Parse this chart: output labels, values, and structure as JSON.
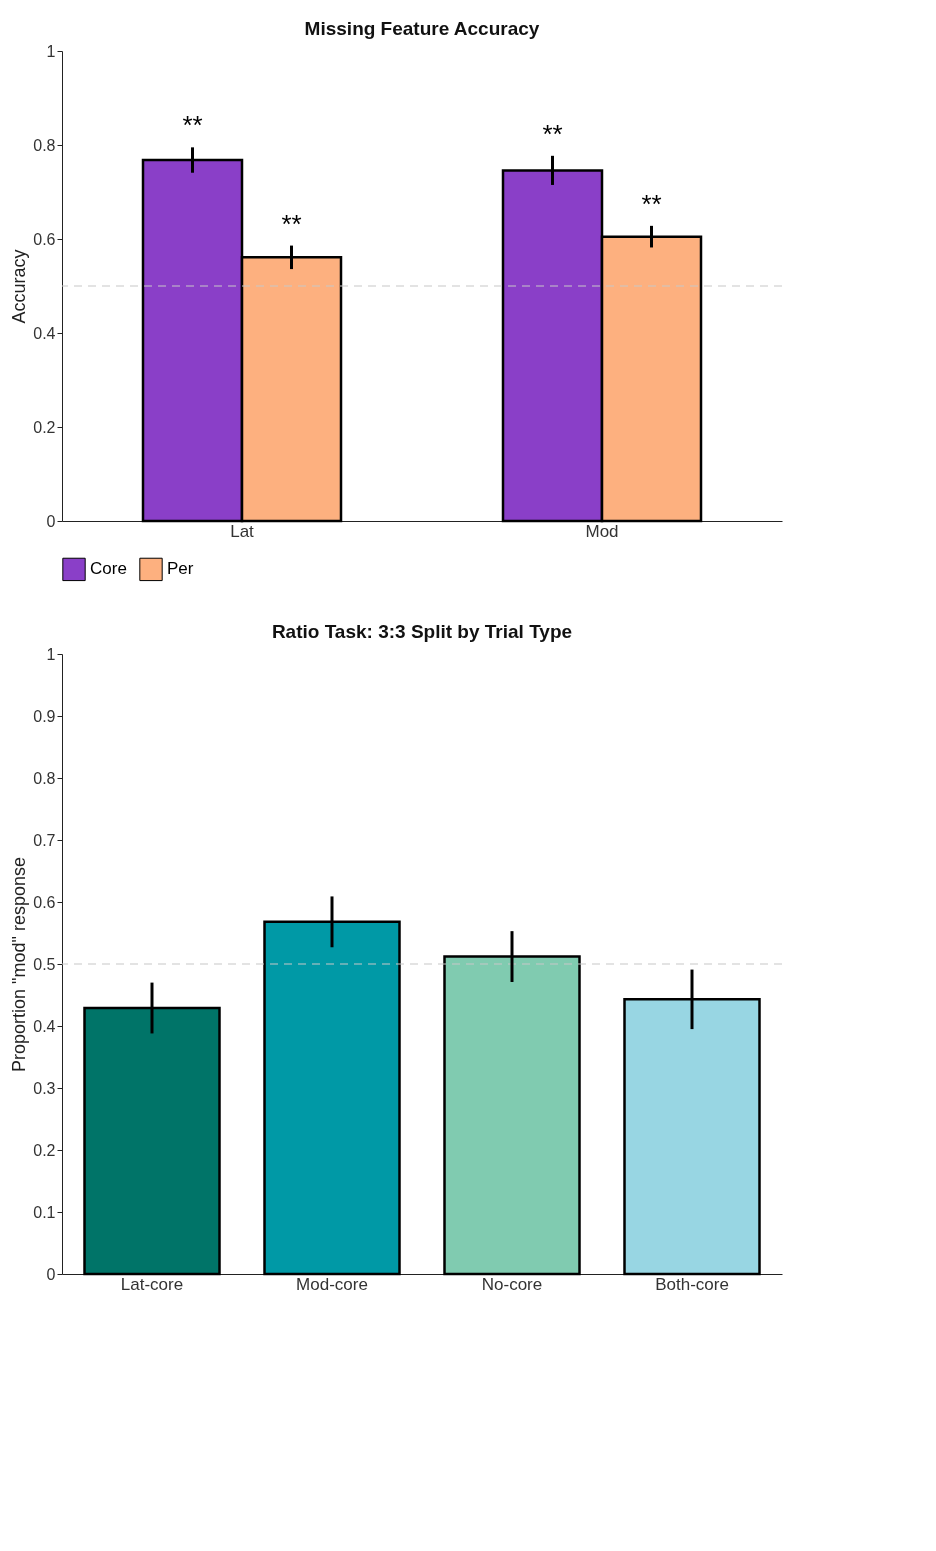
{
  "chart_data": [
    {
      "type": "bar",
      "title": "Missing Feature Accuracy",
      "ylabel": "Accuracy",
      "categories": [
        "Lat",
        "Mod"
      ],
      "series": [
        {
          "name": "Core",
          "color": "#8a3fc8",
          "values": [
            0.768,
            0.746
          ],
          "errors": [
            0.027,
            0.031
          ],
          "value_labels": [
            "**",
            "**"
          ]
        },
        {
          "name": "Per",
          "color": "#fdb07f",
          "values": [
            0.561,
            0.605
          ],
          "errors": [
            0.025,
            0.023
          ],
          "value_labels": [
            "**",
            "**"
          ]
        }
      ],
      "ylim": [
        0,
        1
      ],
      "yticks": [
        0,
        0.2,
        0.4,
        0.6,
        0.8,
        1
      ],
      "grid": false,
      "legend": "bottom",
      "ref_lines": [
        {
          "axis": "y",
          "value": 0.5,
          "color": "#c8c8c8",
          "line_style": "dashed"
        }
      ]
    },
    {
      "type": "bar",
      "title": "Ratio Task: 3:3 Split by Trial Type",
      "ylabel": "Proportion \"mod\" response",
      "categories": [
        "Lat-core",
        "Mod-core",
        "No-core",
        "Both-core"
      ],
      "values": [
        0.429,
        0.568,
        0.512,
        0.443
      ],
      "errors": [
        0.041,
        0.041,
        0.041,
        0.048
      ],
      "colors": [
        "#007468",
        "#0099a6",
        "#80cbb0",
        "#98d6e3"
      ],
      "ylim": [
        0,
        1
      ],
      "yticks": [
        0,
        0.1,
        0.2,
        0.3,
        0.4,
        0.5,
        0.6,
        0.7,
        0.8,
        0.9,
        1
      ],
      "grid": false,
      "ref_lines": [
        {
          "axis": "y",
          "value": 0.5,
          "color": "#c8c8c8",
          "line_style": "dashed"
        }
      ]
    }
  ]
}
